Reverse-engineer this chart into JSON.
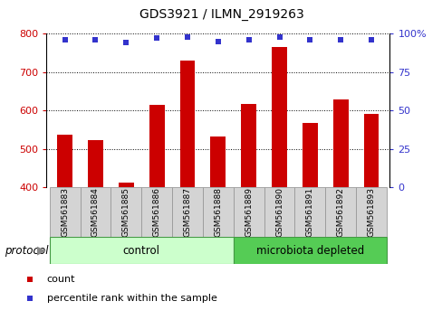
{
  "title": "GDS3921 / ILMN_2919263",
  "samples": [
    "GSM561883",
    "GSM561884",
    "GSM561885",
    "GSM561886",
    "GSM561887",
    "GSM561888",
    "GSM561889",
    "GSM561890",
    "GSM561891",
    "GSM561892",
    "GSM561893"
  ],
  "counts": [
    537,
    522,
    412,
    615,
    730,
    533,
    617,
    765,
    568,
    628,
    590
  ],
  "percentile_ranks": [
    96,
    96,
    94,
    97,
    98,
    95,
    96,
    98,
    96,
    96,
    96
  ],
  "n_control": 6,
  "n_microbiota": 5,
  "ylim_left": [
    400,
    800
  ],
  "ylim_right": [
    0,
    100
  ],
  "yticks_left": [
    400,
    500,
    600,
    700,
    800
  ],
  "yticks_right": [
    0,
    25,
    50,
    75,
    100
  ],
  "bar_color": "#cc0000",
  "dot_color": "#3333cc",
  "control_color": "#ccffcc",
  "microbiota_color": "#55cc55",
  "background_color": "#ffffff",
  "legend_count_color": "#cc0000",
  "legend_pct_color": "#3333cc",
  "title_fontsize": 10,
  "axis_fontsize": 8,
  "label_fontsize": 6.5,
  "group_fontsize": 8.5,
  "legend_fontsize": 8
}
